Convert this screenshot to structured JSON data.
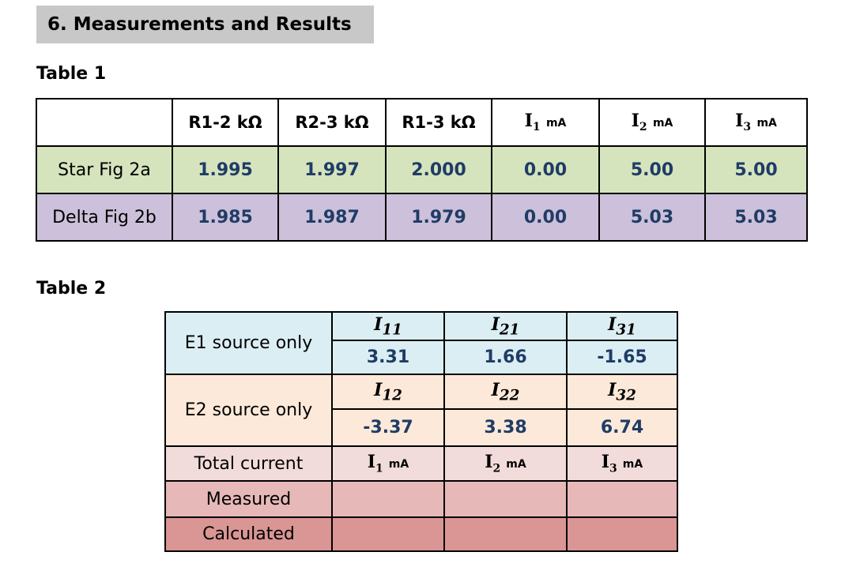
{
  "section_title": "6. Measurements and Results",
  "table1": {
    "caption": "Table 1",
    "headers": [
      "",
      "R1-2 kΩ",
      "R2-3 kΩ",
      "R1-3 kΩ"
    ],
    "current_headers": [
      {
        "symbol": "I",
        "sub": "1",
        "unit": "mA"
      },
      {
        "symbol": "I",
        "sub": "2",
        "unit": "mA"
      },
      {
        "symbol": "I",
        "sub": "3",
        "unit": "mA"
      }
    ],
    "rows": [
      {
        "label": "Star Fig 2a",
        "values": [
          "1.995",
          "1.997",
          "2.000",
          "0.00",
          "5.00",
          "5.00"
        ],
        "color": "#d6e4bd"
      },
      {
        "label": "Delta Fig 2b",
        "values": [
          "1.985",
          "1.987",
          "1.979",
          "0.00",
          "5.03",
          "5.03"
        ],
        "color": "#ccc0da"
      }
    ]
  },
  "table2": {
    "caption": "Table 2",
    "e1": {
      "label": "E1 source only",
      "headers": [
        {
          "symbol": "I",
          "sub": "11"
        },
        {
          "symbol": "I",
          "sub": "21"
        },
        {
          "symbol": "I",
          "sub": "31"
        }
      ],
      "values": [
        "3.31",
        "1.66",
        "-1.65"
      ]
    },
    "e2": {
      "label": "E2 source only",
      "headers": [
        {
          "symbol": "I",
          "sub": "12"
        },
        {
          "symbol": "I",
          "sub": "22"
        },
        {
          "symbol": "I",
          "sub": "32"
        }
      ],
      "values": [
        "-3.37",
        "3.38",
        "6.74"
      ]
    },
    "total": {
      "label": "Total current",
      "headers": [
        {
          "symbol": "I",
          "sub": "1",
          "unit": "mA"
        },
        {
          "symbol": "I",
          "sub": "2",
          "unit": "mA"
        },
        {
          "symbol": "I",
          "sub": "3",
          "unit": "mA"
        }
      ]
    },
    "measured": {
      "label": "Measured",
      "values": [
        "",
        "",
        ""
      ]
    },
    "calculated": {
      "label": "Calculated",
      "values": [
        "",
        "",
        ""
      ]
    }
  }
}
